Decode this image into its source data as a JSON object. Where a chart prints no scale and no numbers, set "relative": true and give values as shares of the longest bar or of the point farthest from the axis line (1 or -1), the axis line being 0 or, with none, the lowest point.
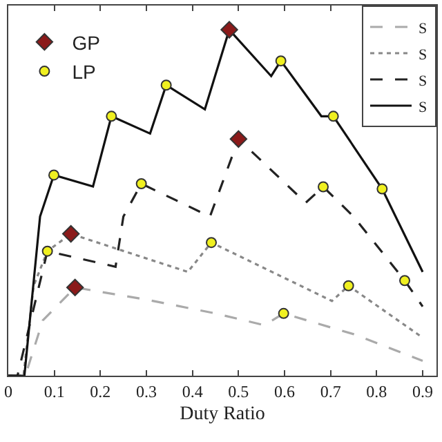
{
  "chart_data": {
    "type": "line",
    "xlabel": "Duty Ratio",
    "relative": true,
    "xlim": [
      0,
      0.93
    ],
    "xticks": [
      0,
      0.1,
      0.2,
      0.3,
      0.4,
      0.5,
      0.6,
      0.7,
      0.8,
      0.9
    ],
    "legend": "top right",
    "grid": false,
    "series": [
      {
        "name": "S",
        "color": "#aaaaaa",
        "line_style": "dashed",
        "x": [
          0,
          0.037,
          0.075,
          0.145,
          0.3,
          0.45,
          0.556,
          0.598,
          0.75,
          0.9
        ],
        "values": [
          0,
          0,
          0.16,
          0.255,
          0.22,
          0.18,
          0.146,
          0.18,
          0.12,
          0.043
        ]
      },
      {
        "name": "S",
        "color": "#888888",
        "line_style": "dotted",
        "x": [
          0,
          0.033,
          0.055,
          0.085,
          0.136,
          0.39,
          0.441,
          0.703,
          0.739,
          0.9
        ],
        "values": [
          0,
          0,
          0.26,
          0.36,
          0.41,
          0.3,
          0.385,
          0.216,
          0.26,
          0.11
        ]
      },
      {
        "name": "S",
        "color": "#222222",
        "line_style": "dashed",
        "x": [
          0,
          0.02,
          0.085,
          0.233,
          0.25,
          0.289,
          0.438,
          0.5,
          0.646,
          0.684,
          0.75,
          0.861,
          0.9
        ],
        "values": [
          0,
          0,
          0.36,
          0.315,
          0.46,
          0.555,
          0.46,
          0.684,
          0.5,
          0.546,
          0.46,
          0.275,
          0.2
        ]
      },
      {
        "name": "S",
        "color": "#111111",
        "line_style": "solid",
        "x": [
          0,
          0.035,
          0.069,
          0.099,
          0.184,
          0.224,
          0.308,
          0.343,
          0.427,
          0.48,
          0.571,
          0.592,
          0.68,
          0.706,
          0.812,
          0.9
        ],
        "values": [
          0,
          0,
          0.46,
          0.58,
          0.547,
          0.75,
          0.7,
          0.84,
          0.77,
          1,
          0.866,
          0.91,
          0.75,
          0.75,
          0.54,
          0.3
        ]
      },
      {
        "name": "GP",
        "type": "scatter",
        "marker": "diamond",
        "color": "#8b1a1a",
        "x": [
          0.136,
          0.145,
          0.5,
          0.48
        ],
        "values": [
          0.41,
          0.255,
          0.684,
          1
        ]
      },
      {
        "name": "LP",
        "type": "scatter",
        "marker": "circle",
        "color": "#f0f020",
        "x": [
          0.099,
          0.224,
          0.343,
          0.592,
          0.706,
          0.812,
          0.289,
          0.684,
          0.861,
          0.085,
          0.441,
          0.739,
          0.598
        ],
        "values": [
          0.58,
          0.75,
          0.84,
          0.91,
          0.75,
          0.54,
          0.555,
          0.546,
          0.275,
          0.36,
          0.385,
          0.26,
          0.18
        ]
      }
    ]
  }
}
